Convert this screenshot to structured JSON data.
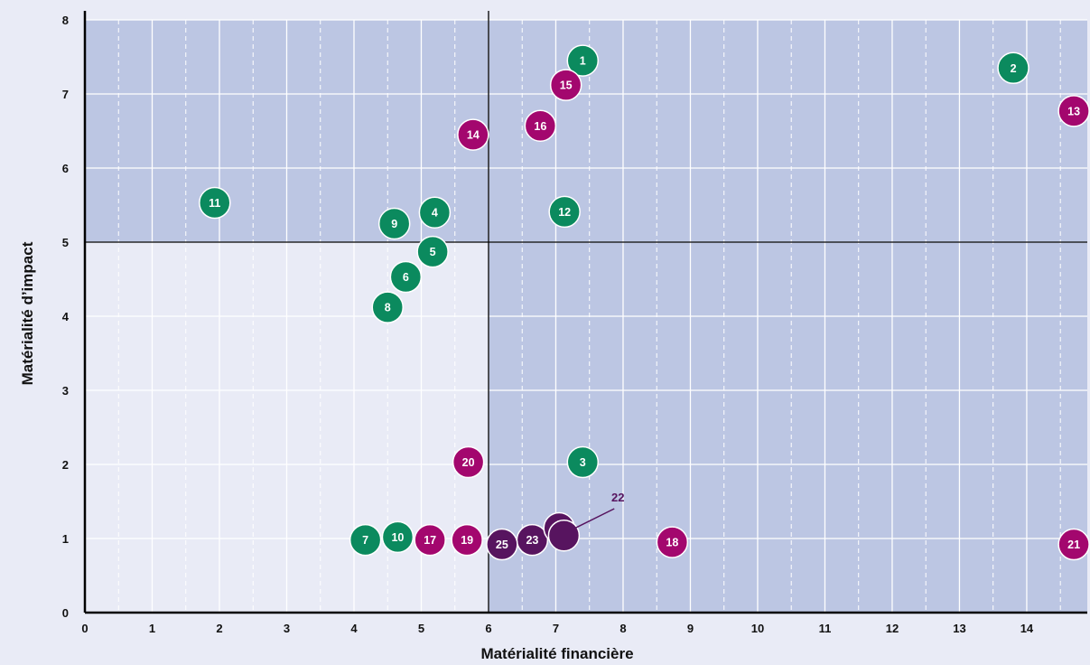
{
  "chart_data": {
    "type": "scatter",
    "xlabel": "Matérialité financière",
    "ylabel": "Matérialité d’impact",
    "xlim": [
      0,
      14.9
    ],
    "ylim": [
      0,
      8
    ],
    "x_ticks": [
      "0",
      "1",
      "2",
      "3",
      "4",
      "5",
      "6",
      "7",
      "8",
      "9",
      "10",
      "11",
      "12",
      "13",
      "14"
    ],
    "y_ticks": [
      "0",
      "1",
      "2",
      "3",
      "4",
      "5",
      "6",
      "7",
      "8"
    ],
    "thresholds": {
      "x": 6,
      "y": 5
    },
    "grid": true,
    "colors": {
      "background": "#e9ebf6",
      "material_zone": "#bcc6e3",
      "green": "#0b8a5e",
      "magenta": "#a3076e",
      "purple": "#57145f"
    },
    "points": [
      {
        "label": "1",
        "x": 7.4,
        "y": 7.45,
        "group": "green"
      },
      {
        "label": "2",
        "x": 13.8,
        "y": 7.35,
        "group": "green"
      },
      {
        "label": "3",
        "x": 7.4,
        "y": 2.03,
        "group": "green"
      },
      {
        "label": "4",
        "x": 5.2,
        "y": 5.4,
        "group": "green"
      },
      {
        "label": "5",
        "x": 5.17,
        "y": 4.87,
        "group": "green"
      },
      {
        "label": "6",
        "x": 4.77,
        "y": 4.53,
        "group": "green"
      },
      {
        "label": "7",
        "x": 4.17,
        "y": 0.98,
        "group": "green"
      },
      {
        "label": "8",
        "x": 4.5,
        "y": 4.12,
        "group": "green"
      },
      {
        "label": "9",
        "x": 4.6,
        "y": 5.25,
        "group": "green"
      },
      {
        "label": "10",
        "x": 4.65,
        "y": 1.02,
        "group": "green"
      },
      {
        "label": "11",
        "x": 1.93,
        "y": 5.53,
        "group": "green"
      },
      {
        "label": "12",
        "x": 7.13,
        "y": 5.41,
        "group": "green"
      },
      {
        "label": "13",
        "x": 14.7,
        "y": 6.77,
        "group": "magenta"
      },
      {
        "label": "14",
        "x": 5.77,
        "y": 6.45,
        "group": "magenta"
      },
      {
        "label": "15",
        "x": 7.15,
        "y": 7.12,
        "group": "magenta"
      },
      {
        "label": "16",
        "x": 6.77,
        "y": 6.57,
        "group": "magenta"
      },
      {
        "label": "17",
        "x": 5.13,
        "y": 0.98,
        "group": "magenta"
      },
      {
        "label": "18",
        "x": 8.73,
        "y": 0.95,
        "group": "magenta"
      },
      {
        "label": "19",
        "x": 5.68,
        "y": 0.98,
        "group": "magenta"
      },
      {
        "label": "20",
        "x": 5.7,
        "y": 2.03,
        "group": "magenta"
      },
      {
        "label": "21",
        "x": 14.7,
        "y": 0.92,
        "group": "magenta"
      },
      {
        "label": "22",
        "x": 7.12,
        "y": 1.04,
        "group": "purple",
        "callout": {
          "x": 7.95,
          "y": 1.5
        }
      },
      {
        "label": "23",
        "x": 6.65,
        "y": 0.98,
        "group": "purple"
      },
      {
        "label": "24",
        "x": 7.05,
        "y": 1.14,
        "group": "purple"
      },
      {
        "label": "25",
        "x": 6.2,
        "y": 0.92,
        "group": "purple"
      }
    ]
  }
}
